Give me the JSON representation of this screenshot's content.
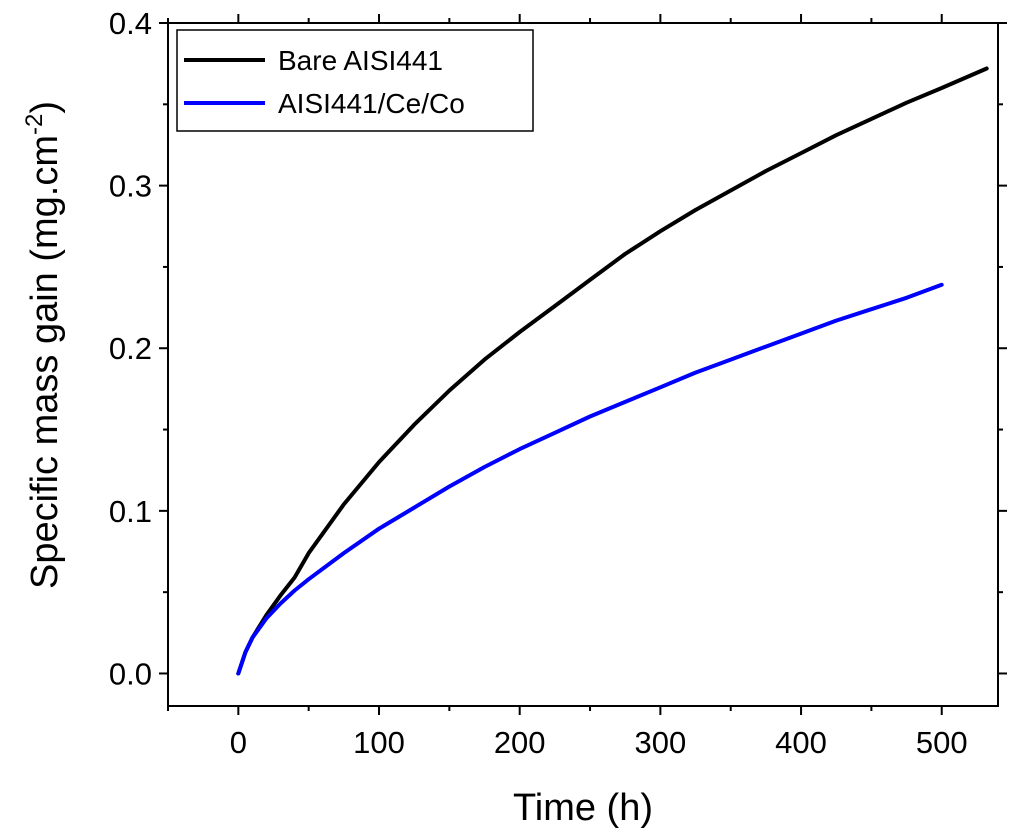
{
  "chart_data": {
    "type": "line",
    "xlabel": "Time (h)",
    "ylabel_main": "Specific mass gain (mg.cm",
    "ylabel_sup": "-2",
    "ylabel_close": ")",
    "xlim": [
      -50,
      540
    ],
    "ylim": [
      -0.02,
      0.4
    ],
    "xticks": [
      0,
      100,
      200,
      300,
      400,
      500
    ],
    "xtick_labels": [
      "0",
      "100",
      "200",
      "300",
      "400",
      "500"
    ],
    "yticks": [
      0.0,
      0.1,
      0.2,
      0.3,
      0.4
    ],
    "ytick_labels": [
      "0.0",
      "0.1",
      "0.2",
      "0.3",
      "0.4"
    ],
    "grid": false,
    "legend_position": "top-left",
    "series": [
      {
        "name": "Bare AISI441",
        "color": "#000000",
        "x": [
          0,
          5,
          10,
          20,
          30,
          40,
          50,
          75,
          100,
          125,
          150,
          175,
          200,
          225,
          250,
          275,
          300,
          325,
          350,
          375,
          400,
          425,
          450,
          475,
          500,
          532
        ],
        "y": [
          0.0,
          0.013,
          0.022,
          0.036,
          0.048,
          0.059,
          0.074,
          0.104,
          0.13,
          0.153,
          0.174,
          0.193,
          0.21,
          0.226,
          0.242,
          0.258,
          0.272,
          0.285,
          0.297,
          0.309,
          0.32,
          0.331,
          0.341,
          0.351,
          0.36,
          0.372
        ]
      },
      {
        "name": "AISI441/Ce/Co",
        "color": "#0000ff",
        "x": [
          0,
          5,
          10,
          20,
          30,
          40,
          50,
          75,
          100,
          125,
          150,
          175,
          200,
          225,
          250,
          275,
          300,
          325,
          350,
          375,
          400,
          425,
          450,
          475,
          500
        ],
        "y": [
          0.0,
          0.013,
          0.022,
          0.034,
          0.043,
          0.051,
          0.058,
          0.074,
          0.089,
          0.102,
          0.115,
          0.127,
          0.138,
          0.148,
          0.158,
          0.167,
          0.176,
          0.185,
          0.193,
          0.201,
          0.209,
          0.217,
          0.224,
          0.231,
          0.239
        ]
      }
    ]
  }
}
